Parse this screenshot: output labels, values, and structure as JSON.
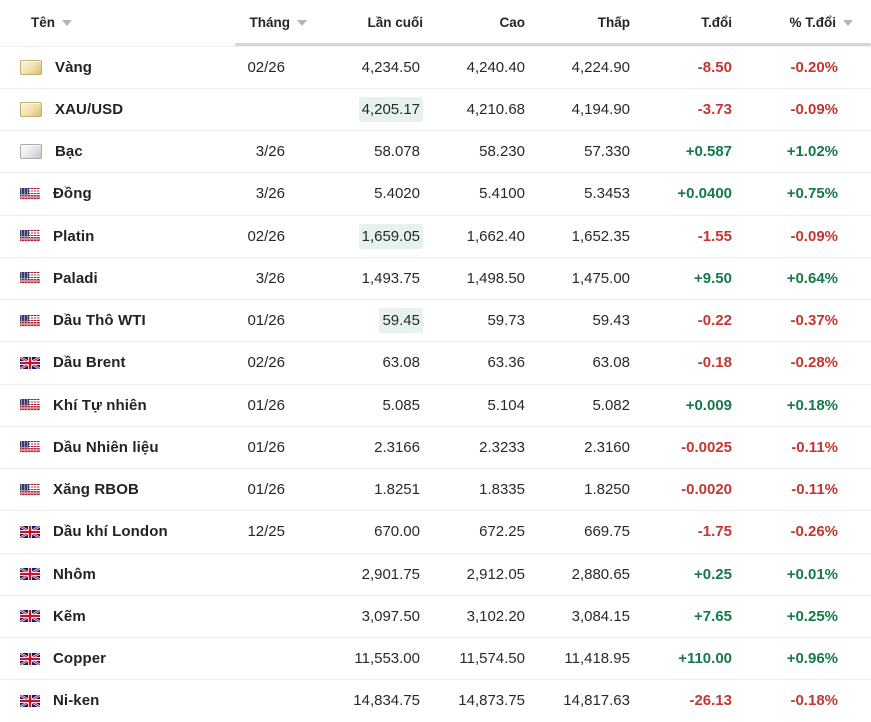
{
  "table": {
    "columns": {
      "name": "Tên",
      "month": "Tháng",
      "last": "Lần cuối",
      "high": "Cao",
      "low": "Thấp",
      "change": "T.đổi",
      "change_pct": "% T.đổi"
    },
    "colors": {
      "up_green": "#17794a",
      "down_red": "#c23732",
      "flash_highlight_bg": "#e8f2ec",
      "header_bar_gray": "#d3d5d7"
    },
    "rows": [
      {
        "name": "Vàng",
        "icon": "gold-bar",
        "month": "02/26",
        "last": "4,234.50",
        "high": "4,240.40",
        "low": "4,224.90",
        "change": "-8.50",
        "change_pct": "-0.20%",
        "direction": "down",
        "last_flash": false
      },
      {
        "name": "XAU/USD",
        "icon": "gold-bar",
        "month": "",
        "last": "4,205.17",
        "high": "4,210.68",
        "low": "4,194.90",
        "change": "-3.73",
        "change_pct": "-0.09%",
        "direction": "down",
        "last_flash": true
      },
      {
        "name": "Bạc",
        "icon": "silver-bar",
        "month": "3/26",
        "last": "58.078",
        "high": "58.230",
        "low": "57.330",
        "change": "+0.587",
        "change_pct": "+1.02%",
        "direction": "up",
        "last_flash": false
      },
      {
        "name": "Đồng",
        "icon": "flag-us",
        "month": "3/26",
        "last": "5.4020",
        "high": "5.4100",
        "low": "5.3453",
        "change": "+0.0400",
        "change_pct": "+0.75%",
        "direction": "up",
        "last_flash": false
      },
      {
        "name": "Platin",
        "icon": "flag-us",
        "month": "02/26",
        "last": "1,659.05",
        "high": "1,662.40",
        "low": "1,652.35",
        "change": "-1.55",
        "change_pct": "-0.09%",
        "direction": "down",
        "last_flash": true
      },
      {
        "name": "Paladi",
        "icon": "flag-us",
        "month": "3/26",
        "last": "1,493.75",
        "high": "1,498.50",
        "low": "1,475.00",
        "change": "+9.50",
        "change_pct": "+0.64%",
        "direction": "up",
        "last_flash": false
      },
      {
        "name": "Dầu Thô WTI",
        "icon": "flag-us",
        "month": "01/26",
        "last": "59.45",
        "high": "59.73",
        "low": "59.43",
        "change": "-0.22",
        "change_pct": "-0.37%",
        "direction": "down",
        "last_flash": true
      },
      {
        "name": "Dầu Brent",
        "icon": "flag-uk",
        "month": "02/26",
        "last": "63.08",
        "high": "63.36",
        "low": "63.08",
        "change": "-0.18",
        "change_pct": "-0.28%",
        "direction": "down",
        "last_flash": false
      },
      {
        "name": "Khí Tự nhiên",
        "icon": "flag-us",
        "month": "01/26",
        "last": "5.085",
        "high": "5.104",
        "low": "5.082",
        "change": "+0.009",
        "change_pct": "+0.18%",
        "direction": "up",
        "last_flash": false
      },
      {
        "name": "Dầu Nhiên liệu",
        "icon": "flag-us",
        "month": "01/26",
        "last": "2.3166",
        "high": "2.3233",
        "low": "2.3160",
        "change": "-0.0025",
        "change_pct": "-0.11%",
        "direction": "down",
        "last_flash": false
      },
      {
        "name": "Xăng RBOB",
        "icon": "flag-us",
        "month": "01/26",
        "last": "1.8251",
        "high": "1.8335",
        "low": "1.8250",
        "change": "-0.0020",
        "change_pct": "-0.11%",
        "direction": "down",
        "last_flash": false
      },
      {
        "name": "Dầu khí London",
        "icon": "flag-uk",
        "month": "12/25",
        "last": "670.00",
        "high": "672.25",
        "low": "669.75",
        "change": "-1.75",
        "change_pct": "-0.26%",
        "direction": "down",
        "last_flash": false
      },
      {
        "name": "Nhôm",
        "icon": "flag-uk",
        "month": "",
        "last": "2,901.75",
        "high": "2,912.05",
        "low": "2,880.65",
        "change": "+0.25",
        "change_pct": "+0.01%",
        "direction": "up",
        "last_flash": false
      },
      {
        "name": "Kẽm",
        "icon": "flag-uk",
        "month": "",
        "last": "3,097.50",
        "high": "3,102.20",
        "low": "3,084.15",
        "change": "+7.65",
        "change_pct": "+0.25%",
        "direction": "up",
        "last_flash": false
      },
      {
        "name": "Copper",
        "icon": "flag-uk",
        "month": "",
        "last": "11,553.00",
        "high": "11,574.50",
        "low": "11,418.95",
        "change": "+110.00",
        "change_pct": "+0.96%",
        "direction": "up",
        "last_flash": false
      },
      {
        "name": "Ni-ken",
        "icon": "flag-uk",
        "month": "",
        "last": "14,834.75",
        "high": "14,873.75",
        "low": "14,817.63",
        "change": "-26.13",
        "change_pct": "-0.18%",
        "direction": "down",
        "last_flash": false
      }
    ]
  }
}
